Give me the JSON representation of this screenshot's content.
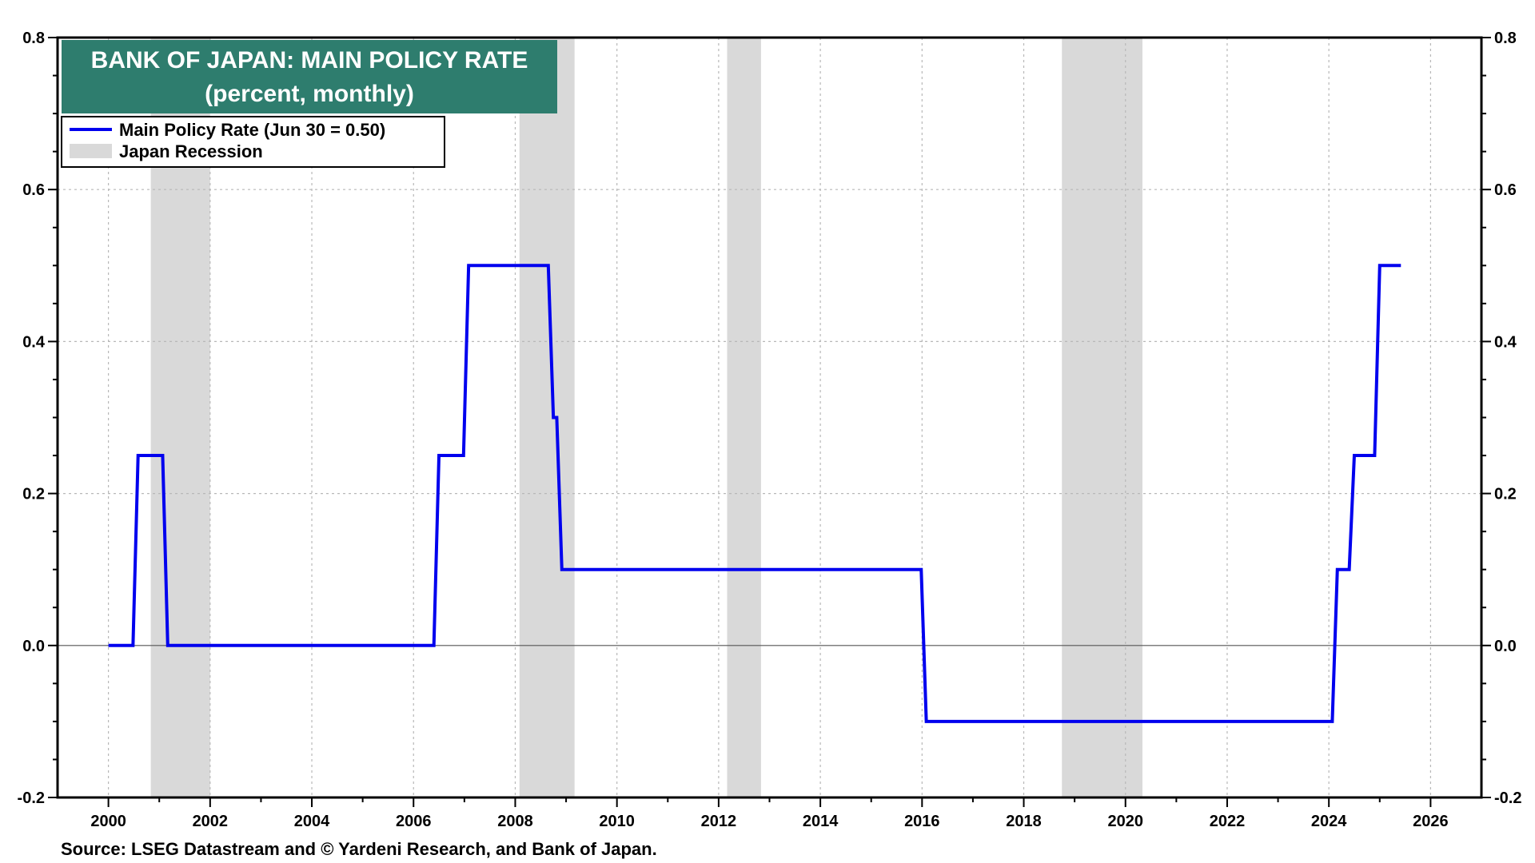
{
  "colors": {
    "series": "#0000ee",
    "recession": "#d9d9d9",
    "title_bg": "#2e7d6e",
    "title_text": "#ffffff"
  },
  "title": {
    "line1": "BANK OF JAPAN: MAIN POLICY RATE",
    "line2": "(percent, monthly)"
  },
  "legend": {
    "series_label": "Main Policy Rate (Jun 30 = 0.50)",
    "recession_label": "Japan Recession"
  },
  "source": "Source: LSEG Datastream and © Yardeni Research, and  Bank of Japan.",
  "chart_data": {
    "type": "line",
    "title": "BANK OF JAPAN: MAIN POLICY RATE",
    "subtitle": "(percent, monthly)",
    "xlabel": "",
    "ylabel": "",
    "xlim": [
      1999.0,
      2027.0
    ],
    "ylim": [
      -0.2,
      0.8
    ],
    "x_ticks": [
      "2000",
      "2002",
      "2004",
      "2006",
      "2008",
      "2010",
      "2012",
      "2014",
      "2016",
      "2018",
      "2020",
      "2022",
      "2024",
      "2026"
    ],
    "y_ticks": [
      "-0.2",
      "0.0",
      "0.2",
      "0.4",
      "0.6",
      "0.8"
    ],
    "y_axes": "left and right",
    "grid": true,
    "legend_position": "top-left",
    "series": [
      {
        "name": "Main Policy Rate (Jun 30 = 0.50)",
        "step_points": [
          {
            "x": "2000-01",
            "y": 0.0
          },
          {
            "x": "2000-08",
            "y": 0.25
          },
          {
            "x": "2001-03",
            "y": 0.0
          },
          {
            "x": "2006-07",
            "y": 0.25
          },
          {
            "x": "2007-02",
            "y": 0.5
          },
          {
            "x": "2008-10",
            "y": 0.3
          },
          {
            "x": "2008-12",
            "y": 0.1
          },
          {
            "x": "2016-02",
            "y": -0.1
          },
          {
            "x": "2024-03",
            "y": 0.1
          },
          {
            "x": "2024-07",
            "y": 0.25
          },
          {
            "x": "2025-01",
            "y": 0.5
          },
          {
            "x": "2025-06",
            "y": 0.5
          }
        ]
      }
    ],
    "recessions": [
      {
        "name": "Japan Recession",
        "start": "2000-11",
        "end": "2002-01"
      },
      {
        "name": "Japan Recession",
        "start": "2008-02",
        "end": "2009-03"
      },
      {
        "name": "Japan Recession",
        "start": "2012-03",
        "end": "2012-11"
      },
      {
        "name": "Japan Recession",
        "start": "2018-10",
        "end": "2020-05"
      }
    ]
  }
}
